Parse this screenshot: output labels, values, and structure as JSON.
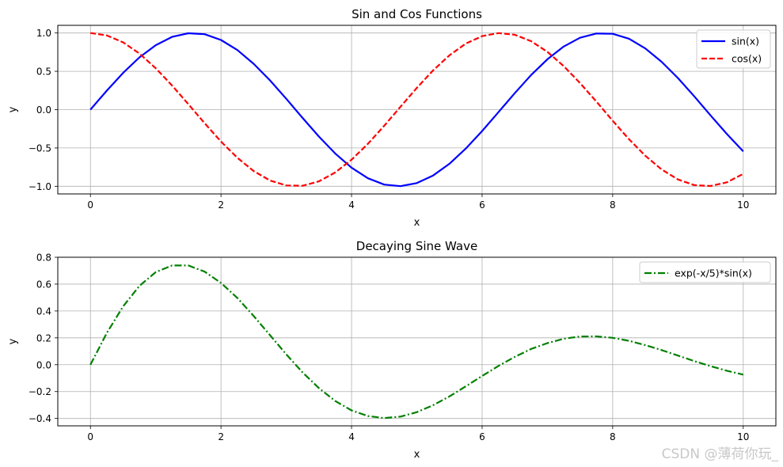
{
  "chart_data": [
    {
      "type": "line",
      "title": "Sin and Cos Functions",
      "xlabel": "x",
      "ylabel": "y",
      "xlim": [
        -0.5,
        10.5
      ],
      "ylim": [
        -1.1,
        1.1
      ],
      "xticks": [
        0,
        2,
        4,
        6,
        8,
        10
      ],
      "xtick_labels": [
        "0",
        "2",
        "4",
        "6",
        "8",
        "10"
      ],
      "yticks": [
        -1.0,
        -0.5,
        0.0,
        0.5,
        1.0
      ],
      "ytick_labels": [
        "−1.0",
        "−0.5",
        "0.0",
        "0.5",
        "1.0"
      ],
      "grid": true,
      "legend_position": "top-right",
      "series": [
        {
          "name": "sin(x)",
          "color": "#0000ff",
          "style": "solid",
          "x": [
            0,
            0.25,
            0.5,
            0.75,
            1,
            1.25,
            1.5,
            1.75,
            2,
            2.25,
            2.5,
            2.75,
            3,
            3.25,
            3.5,
            3.75,
            4,
            4.25,
            4.5,
            4.75,
            5,
            5.25,
            5.5,
            5.75,
            6,
            6.25,
            6.5,
            6.75,
            7,
            7.25,
            7.5,
            7.75,
            8,
            8.25,
            8.5,
            8.75,
            9,
            9.25,
            9.5,
            9.75,
            10
          ],
          "y": [
            0,
            0.247,
            0.479,
            0.682,
            0.841,
            0.949,
            0.997,
            0.984,
            0.909,
            0.778,
            0.598,
            0.382,
            0.141,
            -0.108,
            -0.351,
            -0.572,
            -0.757,
            -0.895,
            -0.978,
            -0.999,
            -0.959,
            -0.859,
            -0.706,
            -0.508,
            -0.279,
            -0.033,
            0.215,
            0.451,
            0.657,
            0.823,
            0.938,
            0.994,
            0.989,
            0.925,
            0.798,
            0.624,
            0.412,
            0.174,
            -0.075,
            -0.319,
            -0.544
          ]
        },
        {
          "name": "cos(x)",
          "color": "#ff0000",
          "style": "dashed",
          "x": [
            0,
            0.25,
            0.5,
            0.75,
            1,
            1.25,
            1.5,
            1.75,
            2,
            2.25,
            2.5,
            2.75,
            3,
            3.25,
            3.5,
            3.75,
            4,
            4.25,
            4.5,
            4.75,
            5,
            5.25,
            5.5,
            5.75,
            6,
            6.25,
            6.5,
            6.75,
            7,
            7.25,
            7.5,
            7.75,
            8,
            8.25,
            8.5,
            8.75,
            9,
            9.25,
            9.5,
            9.75,
            10
          ],
          "y": [
            1,
            0.969,
            0.878,
            0.732,
            0.54,
            0.315,
            0.071,
            -0.178,
            -0.416,
            -0.628,
            -0.801,
            -0.924,
            -0.99,
            -0.994,
            -0.936,
            -0.82,
            -0.654,
            -0.446,
            -0.211,
            0.038,
            0.284,
            0.512,
            0.709,
            0.861,
            0.96,
            0.999,
            0.977,
            0.893,
            0.754,
            0.568,
            0.347,
            0.105,
            -0.146,
            -0.386,
            -0.602,
            -0.781,
            -0.911,
            -0.985,
            -0.997,
            -0.948,
            -0.839
          ]
        }
      ]
    },
    {
      "type": "line",
      "title": "Decaying Sine Wave",
      "xlabel": "x",
      "ylabel": "y",
      "xlim": [
        -0.5,
        10.5
      ],
      "ylim": [
        -0.455,
        0.8
      ],
      "xticks": [
        0,
        2,
        4,
        6,
        8,
        10
      ],
      "xtick_labels": [
        "0",
        "2",
        "4",
        "6",
        "8",
        "10"
      ],
      "yticks": [
        -0.4,
        -0.2,
        0.0,
        0.2,
        0.4,
        0.6,
        0.8
      ],
      "ytick_labels": [
        "−0.4",
        "−0.2",
        "0.0",
        "0.2",
        "0.4",
        "0.6",
        "0.8"
      ],
      "grid": true,
      "legend_position": "top-right",
      "series": [
        {
          "name": "exp(-x/5)*sin(x)",
          "color": "#008000",
          "style": "dashdot",
          "x": [
            0,
            0.25,
            0.5,
            0.75,
            1,
            1.25,
            1.5,
            1.75,
            2,
            2.25,
            2.5,
            2.75,
            3,
            3.25,
            3.5,
            3.75,
            4,
            4.25,
            4.5,
            4.75,
            5,
            5.25,
            5.5,
            5.75,
            6,
            6.25,
            6.5,
            6.75,
            7,
            7.25,
            7.5,
            7.75,
            8,
            8.25,
            8.5,
            8.75,
            9,
            9.25,
            9.5,
            9.75,
            10
          ],
          "y": [
            0,
            0.235,
            0.434,
            0.587,
            0.689,
            0.739,
            0.739,
            0.693,
            0.609,
            0.497,
            0.363,
            0.22,
            0.077,
            -0.057,
            -0.174,
            -0.27,
            -0.34,
            -0.382,
            -0.397,
            -0.386,
            -0.353,
            -0.301,
            -0.236,
            -0.161,
            -0.084,
            -0.009,
            0.058,
            0.117,
            0.161,
            0.193,
            0.21,
            0.211,
            0.2,
            0.178,
            0.146,
            0.109,
            0.068,
            0.027,
            -0.011,
            -0.045,
            -0.074
          ]
        }
      ]
    }
  ],
  "watermark": "CSDN @薄荷你玩_"
}
